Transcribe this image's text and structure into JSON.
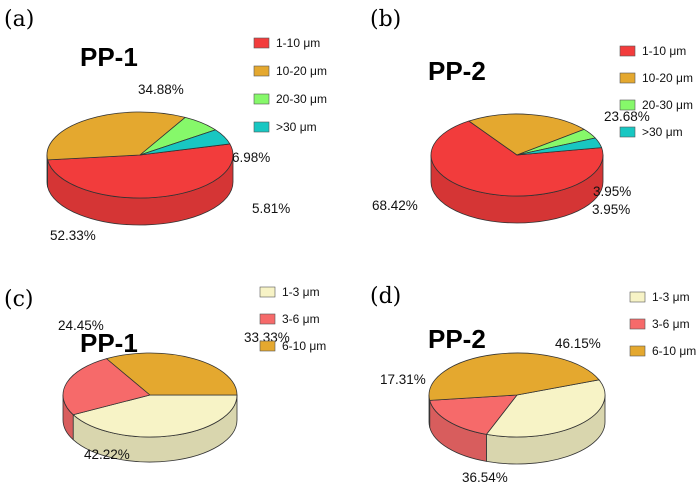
{
  "chart_data": [
    {
      "type": "pie",
      "panel": "(a)",
      "title": "PP-1",
      "categories": [
        "1-10 μm",
        "10-20 μm",
        "20-30 μm",
        ">30 μm"
      ],
      "values": [
        52.33,
        34.88,
        6.98,
        5.81
      ],
      "labels": [
        "52.33%",
        "34.88%",
        "6.98%",
        "5.81%"
      ],
      "colors": [
        "#f23c3c",
        "#e4a82f",
        "#86f86a",
        "#18c7c2"
      ],
      "legend_position": "top-right"
    },
    {
      "type": "pie",
      "panel": "(b)",
      "title": "PP-2",
      "categories": [
        "1-10 μm",
        "10-20 μm",
        "20-30 μm",
        ">30 μm"
      ],
      "values": [
        68.42,
        23.68,
        3.95,
        3.95
      ],
      "labels": [
        "68.42%",
        "23.68%",
        "3.95%",
        "3.95%"
      ],
      "colors": [
        "#f23c3c",
        "#e4a82f",
        "#86f86a",
        "#18c7c2"
      ],
      "legend_position": "top-right"
    },
    {
      "type": "pie",
      "panel": "(c)",
      "title": "PP-1",
      "categories": [
        "1-3 μm",
        "3-6 μm",
        "6-10 μm"
      ],
      "values": [
        42.22,
        24.45,
        33.33
      ],
      "labels": [
        "42.22%",
        "24.45%",
        "33.33%"
      ],
      "colors": [
        "#f7f3c6",
        "#f66a6a",
        "#e4a82f"
      ],
      "legend_position": "top-right"
    },
    {
      "type": "pie",
      "panel": "(d)",
      "title": "PP-2",
      "categories": [
        "1-3 μm",
        "3-6 μm",
        "6-10 μm"
      ],
      "values": [
        36.54,
        17.31,
        46.15
      ],
      "labels": [
        "36.54%",
        "17.31%",
        "46.15%"
      ],
      "colors": [
        "#f7f3c6",
        "#f66a6a",
        "#e4a82f"
      ],
      "legend_position": "top-right"
    }
  ]
}
